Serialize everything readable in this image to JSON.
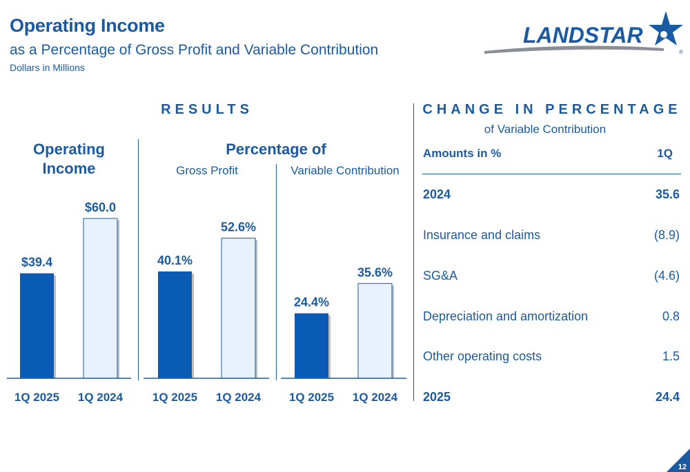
{
  "header": {
    "title": "Operating Income",
    "subtitle": "as a Percentage of Gross Profit and Variable Contribution",
    "units": "Dollars in Millions"
  },
  "logo": {
    "text": "LANDSTAR",
    "registered": "®"
  },
  "results": {
    "heading": "RESULTS",
    "operating_income": {
      "title_line1": "Operating",
      "title_line2": "Income"
    },
    "percentage_of": {
      "title": "Percentage of",
      "gross_profit_label": "Gross Profit",
      "variable_contribution_label": "Variable Contribution"
    }
  },
  "change": {
    "heading": "CHANGE IN PERCENTAGE",
    "subheading": "of Variable Contribution",
    "col_label": "Amounts in %",
    "col_period": "1Q",
    "rows": [
      {
        "label": "2024",
        "value": "35.6",
        "bold": true
      },
      {
        "label": "Insurance and claims",
        "value": "(8.9)",
        "bold": false
      },
      {
        "label": "SG&A",
        "value": "(4.6)",
        "bold": false
      },
      {
        "label": "Depreciation and amortization",
        "value": "0.8",
        "bold": false
      },
      {
        "label": "Other operating costs",
        "value": "1.5",
        "bold": false
      },
      {
        "label": "2025",
        "value": "24.4",
        "bold": true
      }
    ]
  },
  "colors": {
    "brand_blue": "#1a5aa3",
    "bar_current": "#0a5bb5",
    "bar_prior": "#e8f2fc"
  },
  "chart_data": [
    {
      "type": "bar",
      "categories": [
        "1Q 2025",
        "1Q 2024"
      ],
      "values": [
        39.4,
        60.0
      ],
      "labels": [
        "$39.4",
        "$60.0"
      ],
      "ylim": [
        0,
        60
      ]
    },
    {
      "type": "bar",
      "categories": [
        "1Q 2025",
        "1Q 2024"
      ],
      "values": [
        40.1,
        52.6
      ],
      "labels": [
        "40.1%",
        "52.6%"
      ],
      "ylim": [
        0,
        60
      ]
    },
    {
      "type": "bar",
      "categories": [
        "1Q 2025",
        "1Q 2024"
      ],
      "values": [
        24.4,
        35.6
      ],
      "labels": [
        "24.4%",
        "35.6%"
      ],
      "ylim": [
        0,
        60
      ]
    }
  ],
  "page_number": "12"
}
